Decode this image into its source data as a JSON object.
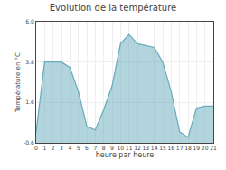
{
  "chart_data": {
    "type": "area",
    "title": "Evolution de la température",
    "xlabel": "heure par heure",
    "ylabel": "Température en °C",
    "x": [
      0,
      1,
      2,
      3,
      4,
      5,
      6,
      7,
      8,
      9,
      10,
      11,
      12,
      13,
      14,
      15,
      16,
      17,
      18,
      19,
      20,
      21
    ],
    "values": [
      0.0,
      3.8,
      3.8,
      3.8,
      3.5,
      2.2,
      0.3,
      0.1,
      1.2,
      2.5,
      4.8,
      5.3,
      4.8,
      4.7,
      4.6,
      3.8,
      2.2,
      0.0,
      -0.3,
      1.3,
      1.4,
      1.4
    ],
    "color": "#66aabb",
    "xlim": [
      0,
      21
    ],
    "xticks": [
      0,
      1,
      2,
      3,
      4,
      5,
      6,
      7,
      8,
      9,
      10,
      11,
      12,
      13,
      14,
      15,
      16,
      17,
      18,
      19,
      20,
      21
    ],
    "ylim": [
      -0.6,
      6.0
    ],
    "yticks": [
      -0.6,
      1.6,
      3.8,
      {
        "value": 6.0,
        "label": "6.0"
      }
    ],
    "grid": true
  }
}
